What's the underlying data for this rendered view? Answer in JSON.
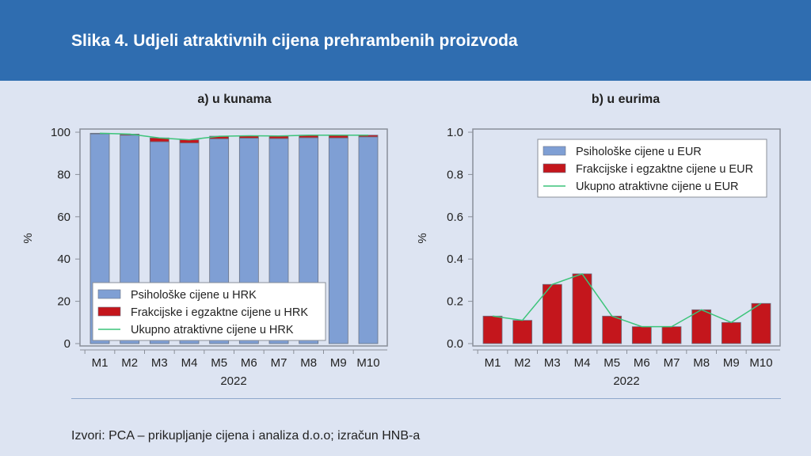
{
  "title": "Slika 4. Udjeli atraktivnih cijena prehrambenih proizvoda",
  "source": "Izvori: PCA – prikupljanje cijena i analiza d.o.o; izračun HNB-a",
  "colors": {
    "header": "#2f6db0",
    "background": "#dde4f2",
    "psiholoske": "#7f9fd4",
    "frakcijske": "#c4161c",
    "ukupno": "#3cc47a"
  },
  "chart_data": [
    {
      "type": "bar",
      "stacked": true,
      "title": "a) u kunama",
      "xlabel": "2022",
      "ylabel": "%",
      "ylim": [
        0,
        100
      ],
      "yticks": [
        "0",
        "20",
        "40",
        "60",
        "80",
        "100"
      ],
      "categories": [
        "M1",
        "M2",
        "M3",
        "M4",
        "M5",
        "M6",
        "M7",
        "M8",
        "M9",
        "M10"
      ],
      "legend_position": "bottom-left",
      "series": [
        {
          "name": "Psihološke cijene u HRK",
          "kind": "bar",
          "values": [
            99.2,
            98.6,
            95.5,
            94.9,
            96.9,
            97.2,
            97.0,
            97.4,
            97.3,
            97.8
          ]
        },
        {
          "name": "Frakcijske i egzaktne cijene u HRK",
          "kind": "bar",
          "values": [
            0.3,
            0.5,
            1.8,
            1.5,
            1.2,
            1.1,
            1.2,
            1.2,
            1.3,
            0.8
          ]
        },
        {
          "name": "Ukupno atraktivne cijene u HRK",
          "kind": "line",
          "values": [
            99.5,
            99.1,
            97.3,
            96.4,
            98.1,
            98.3,
            98.2,
            98.6,
            98.6,
            98.6
          ]
        }
      ]
    },
    {
      "type": "bar",
      "title": "b) u eurima",
      "xlabel": "2022",
      "ylabel": "%",
      "ylim": [
        0,
        1.0
      ],
      "yticks": [
        "0.0",
        "0.2",
        "0.4",
        "0.6",
        "0.8",
        "1.0"
      ],
      "categories": [
        "M1",
        "M2",
        "M3",
        "M4",
        "M5",
        "M6",
        "M7",
        "M8",
        "M9",
        "M10"
      ],
      "legend_position": "top-right",
      "series": [
        {
          "name": "Psihološke cijene u EUR",
          "kind": "bar",
          "values": [
            0,
            0,
            0,
            0,
            0,
            0,
            0,
            0,
            0,
            0
          ]
        },
        {
          "name": "Frakcijske i egzaktne cijene u EUR",
          "kind": "bar",
          "values": [
            0.13,
            0.11,
            0.28,
            0.33,
            0.13,
            0.08,
            0.08,
            0.16,
            0.1,
            0.19
          ]
        },
        {
          "name": "Ukupno atraktivne cijene u EUR",
          "kind": "line",
          "values": [
            0.13,
            0.11,
            0.28,
            0.33,
            0.13,
            0.08,
            0.08,
            0.16,
            0.1,
            0.19
          ]
        }
      ]
    }
  ]
}
